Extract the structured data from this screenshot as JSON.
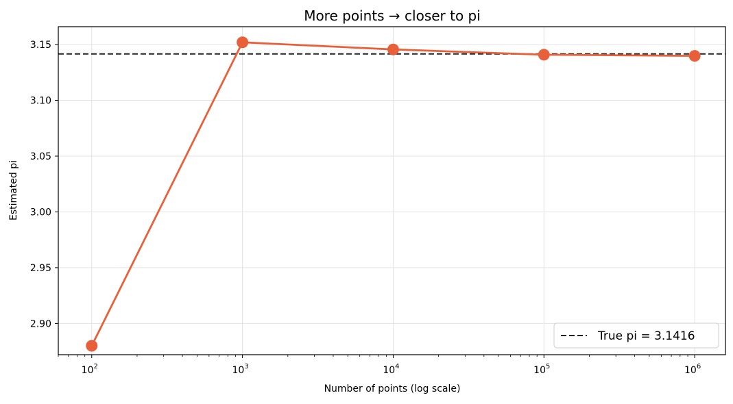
{
  "chart_data": {
    "type": "line",
    "title": "More points → closer to pi",
    "xlabel": "Number of points (log scale)",
    "ylabel": "Estimated pi",
    "xscale": "log",
    "xlim": [
      60,
      1600000
    ],
    "ylim": [
      2.872,
      3.166
    ],
    "grid": true,
    "legend_position": "lower-right",
    "x_ticks": [
      {
        "value": 100,
        "base": "10",
        "exp": "2"
      },
      {
        "value": 1000,
        "base": "10",
        "exp": "3"
      },
      {
        "value": 10000,
        "base": "10",
        "exp": "4"
      },
      {
        "value": 100000,
        "base": "10",
        "exp": "5"
      },
      {
        "value": 1000000,
        "base": "10",
        "exp": "6"
      }
    ],
    "y_ticks": [
      {
        "value": 2.9,
        "label": "2.90"
      },
      {
        "value": 2.95,
        "label": "2.95"
      },
      {
        "value": 3.0,
        "label": "3.00"
      },
      {
        "value": 3.05,
        "label": "3.05"
      },
      {
        "value": 3.1,
        "label": "3.10"
      },
      {
        "value": 3.15,
        "label": "3.15"
      }
    ],
    "series": [
      {
        "color": "#e8603a",
        "x": [
          100,
          1000,
          10000,
          100000,
          1000000
        ],
        "values": [
          2.88,
          3.152,
          3.1456,
          3.14088,
          3.139864
        ]
      }
    ],
    "reference_line": {
      "y": 3.1416,
      "label": "True pi = 3.1416",
      "color": "#222222",
      "style": "dashed"
    }
  }
}
